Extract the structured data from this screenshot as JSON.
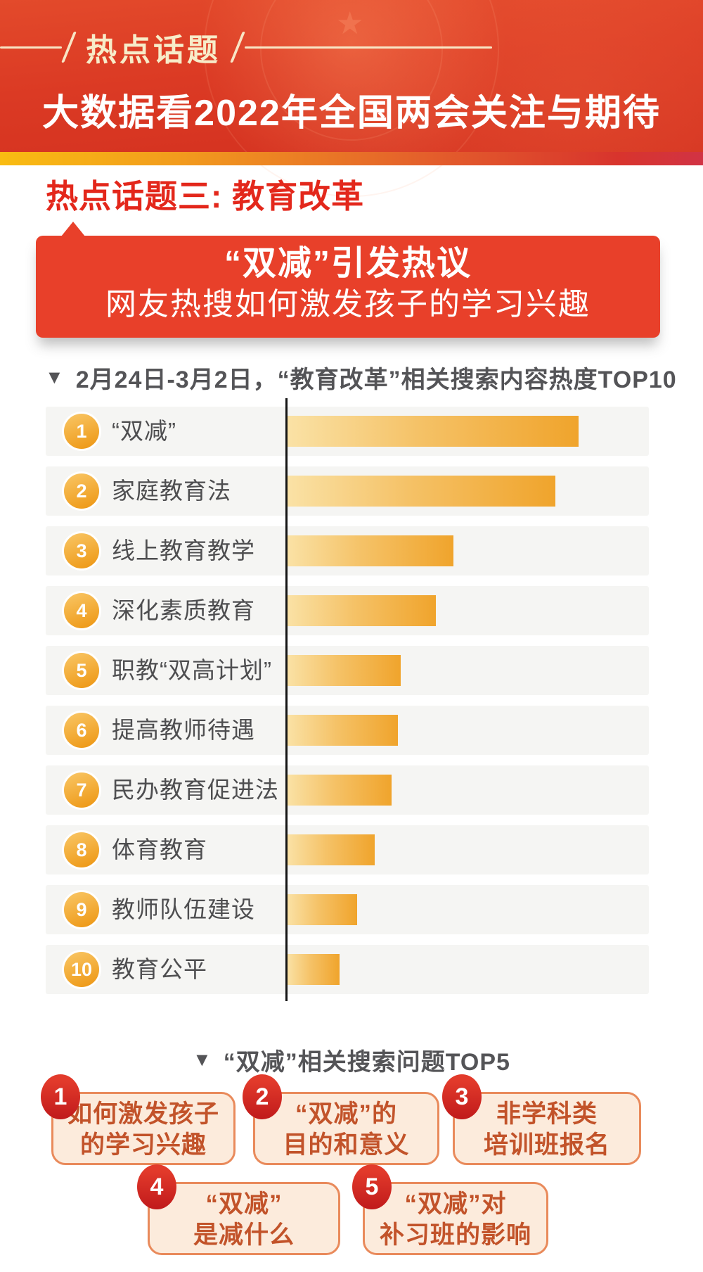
{
  "header": {
    "tag_label": "热点话题",
    "main_title": "大数据看2022年全国两会关注与期待"
  },
  "section": {
    "heading": "热点话题三: 教育改革",
    "banner": {
      "line1": "“双减”引发热议",
      "line2": "网友热搜如何激发孩子的学习兴趣"
    }
  },
  "chart": {
    "marker": "▼",
    "title": "2月24日-3月2日，“教育改革”相关搜索内容热度TOP10"
  },
  "chart_data": {
    "type": "bar",
    "orientation": "horizontal",
    "title": "2月24日-3月2日，“教育改革”相关搜索内容热度TOP10",
    "categories": [
      "“双减”",
      "家庭教育法",
      "线上教育教学",
      "深化素质教育",
      "职教“双高计划”",
      "提高教师待遇",
      "民办教育促进法",
      "体育教育",
      "教师队伍建设",
      "教育公平"
    ],
    "ranks": [
      "1",
      "2",
      "3",
      "4",
      "5",
      "6",
      "7",
      "8",
      "9",
      "10"
    ],
    "values_relative": [
      100,
      92,
      57,
      51,
      39,
      38,
      36,
      30,
      24,
      18
    ],
    "xlim": [
      0,
      100
    ],
    "grid": false,
    "legend": false,
    "bar_gradient": [
      "#FAE2A6",
      "#F0A42C"
    ]
  },
  "top5": {
    "marker": "▼",
    "title": "“双减”相关搜索问题TOP5",
    "items": [
      {
        "rank": "1",
        "lines": [
          "如何激发孩子",
          "的学习兴趣"
        ]
      },
      {
        "rank": "2",
        "lines": [
          "“双减”的",
          "目的和意义"
        ]
      },
      {
        "rank": "3",
        "lines": [
          "非学科类",
          "培训班报名"
        ]
      },
      {
        "rank": "4",
        "lines": [
          "“双减”",
          "是减什么"
        ]
      },
      {
        "rank": "5",
        "lines": [
          "“双减”对",
          "补习班的影响"
        ]
      }
    ]
  },
  "colors": {
    "header_red": "#DB3A24",
    "accent_gold": "#F9BC12",
    "heading_red": "#E3271B",
    "banner_red": "#E8402A",
    "bar_light": "#FAE2A6",
    "bar_dark": "#F0A42C",
    "rank_badge_orange": "#EE9A19",
    "axis_black": "#141414",
    "text_gray": "#4E4E50",
    "row_background": "#F5F5F3",
    "question_box_fill": "#FCEBDC",
    "question_box_border": "#E98A5B",
    "question_text": "#C2532A",
    "question_badge_red": "#D02420"
  }
}
